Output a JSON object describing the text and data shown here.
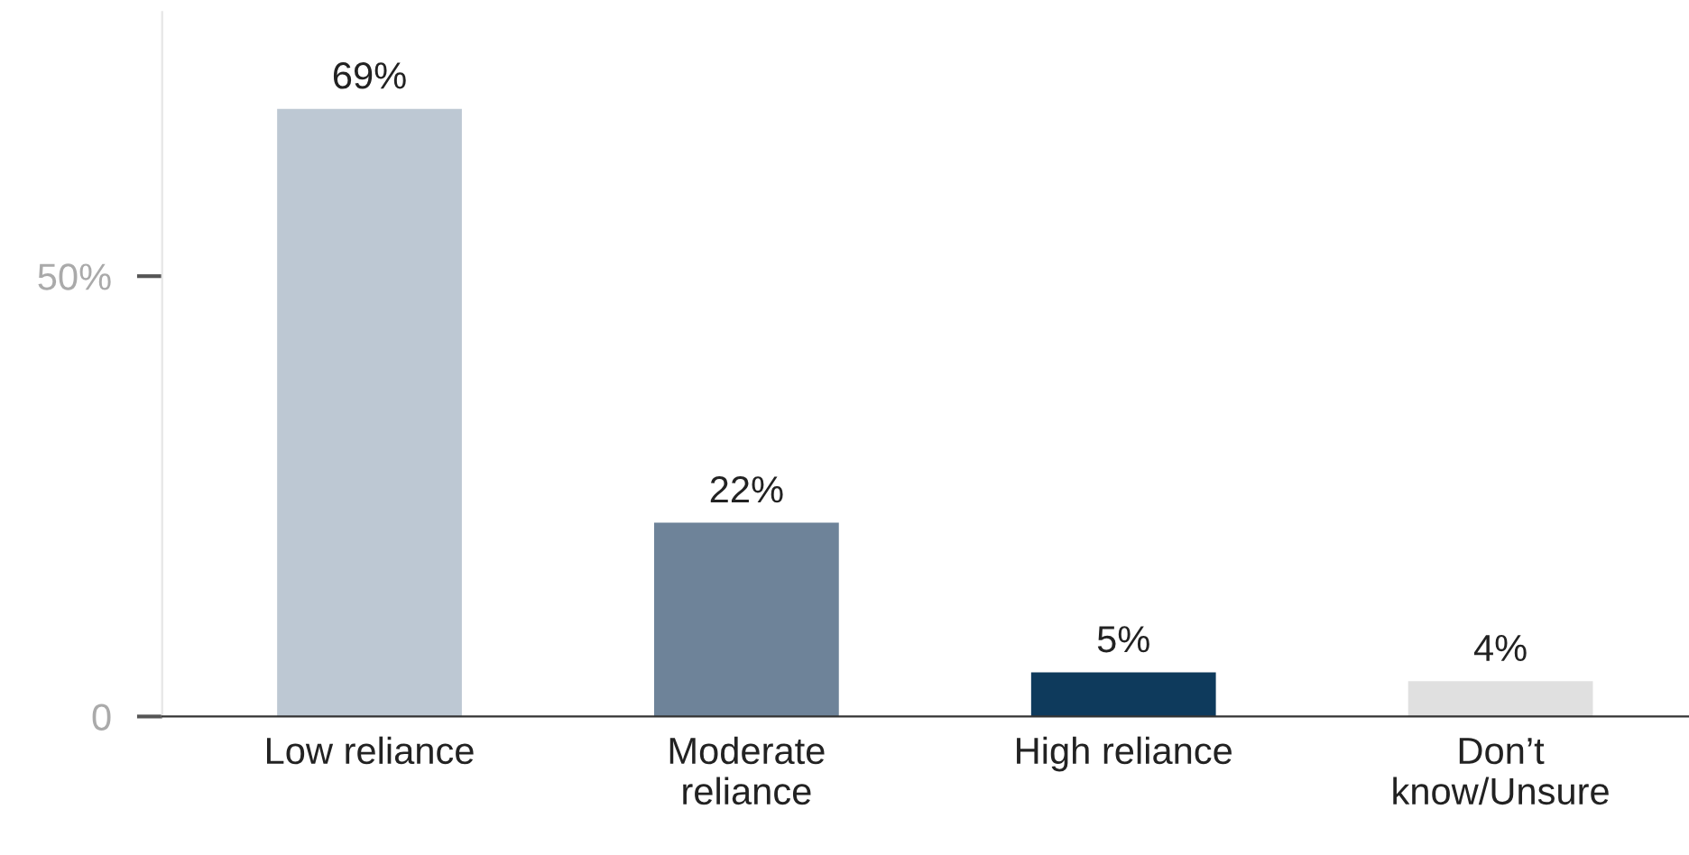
{
  "chart_data": {
    "type": "bar",
    "categories": [
      "Low reliance",
      "Moderate\nreliance",
      "High reliance",
      "Don’t\nknow/Unsure"
    ],
    "values": [
      69,
      22,
      5,
      4
    ],
    "colors": [
      "#bdc8d3",
      "#6e8399",
      "#0e3a5c",
      "#e0e0e0"
    ],
    "value_labels": [
      "69%",
      "22%",
      "5%",
      "4%"
    ],
    "ylim": [
      0,
      80
    ],
    "yticks": [
      0,
      {
        "value": 50,
        "label": "50%"
      }
    ],
    "grid": false,
    "legend": false
  }
}
